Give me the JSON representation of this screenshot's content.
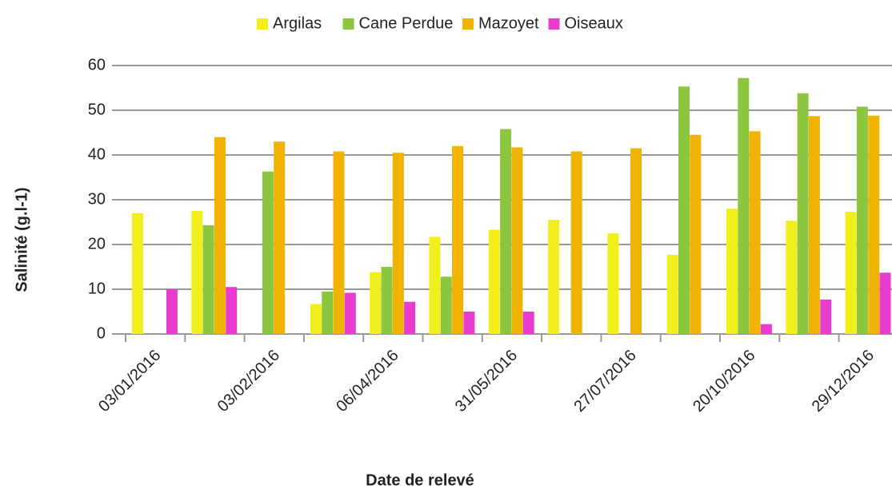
{
  "chart_data": {
    "type": "bar",
    "categories": [
      "03/01/2016",
      null,
      "03/02/2016",
      null,
      "06/04/2016",
      null,
      "31/05/2016",
      null,
      "27/07/2016",
      null,
      "20/10/2016",
      null,
      "29/12/2016"
    ],
    "series": [
      {
        "name": "Argilas",
        "color": "#f2ee1c",
        "values": [
          27,
          27.5,
          null,
          6.7,
          13.8,
          21.7,
          23.3,
          25.5,
          22.5,
          17.7,
          28,
          25.3,
          27.3
        ]
      },
      {
        "name": "Cane Perdue",
        "color": "#8cc63f",
        "values": [
          null,
          24.3,
          36.3,
          9.5,
          15,
          12.8,
          45.8,
          null,
          null,
          55.3,
          57.2,
          53.8,
          50.8
        ]
      },
      {
        "name": "Mazoyet",
        "color": "#f0b400",
        "values": [
          null,
          44,
          43,
          40.8,
          40.5,
          42,
          41.7,
          40.8,
          41.5,
          44.5,
          45.3,
          48.7,
          48.8
        ]
      },
      {
        "name": "Oiseaux",
        "color": "#e83ccf",
        "values": [
          10,
          10.5,
          null,
          9.2,
          7.2,
          5,
          5,
          null,
          null,
          null,
          2.2,
          7.7,
          13.7
        ]
      }
    ],
    "x_label": "Date de relevé",
    "y_label": "Salinité (g.l-1)",
    "ylim": [
      0,
      60
    ],
    "yticks": [
      0,
      10,
      20,
      30,
      40,
      50,
      60
    ],
    "grid": true,
    "legend": "top"
  }
}
